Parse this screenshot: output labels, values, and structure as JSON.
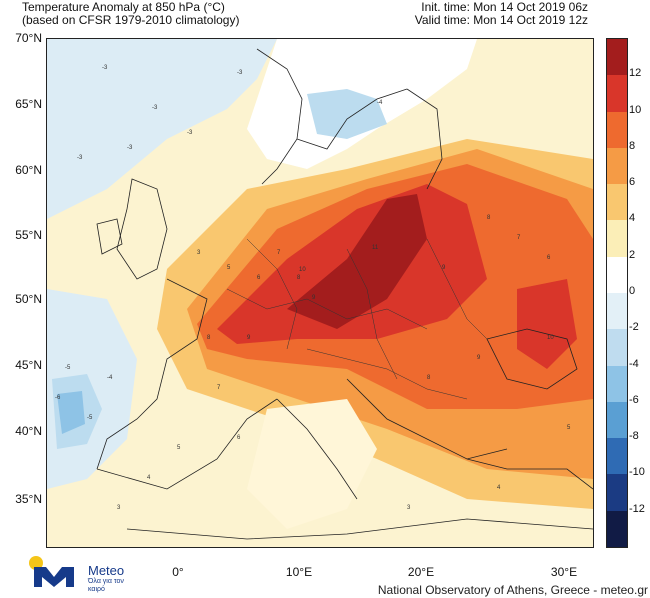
{
  "header": {
    "title_line1": "Temperature Anomaly at 850 hPa (°C)",
    "title_line2": "(based on CFSR 1979-2010 climatology)",
    "init_time": "Init. time: Mon 14 Oct 2019 06z",
    "valid_time": "Valid time: Mon 14 Oct 2019 12z"
  },
  "map": {
    "lat_labels": [
      "70°N",
      "65°N",
      "60°N",
      "55°N",
      "50°N",
      "45°N",
      "40°N",
      "35°N"
    ],
    "lon_labels": [
      "0°",
      "10°E",
      "20°E",
      "30°E"
    ],
    "contour_labels": [
      "-3",
      "-3",
      "-3",
      "-3",
      "-3",
      "-3",
      "-4",
      "-5",
      "-6",
      "-5",
      "-4",
      "3",
      "5",
      "6",
      "7",
      "8",
      "9",
      "10",
      "11",
      "9",
      "8",
      "7",
      "6",
      "5",
      "4",
      "3",
      "8",
      "9",
      "10",
      "9",
      "8",
      "7",
      "6",
      "5",
      "4",
      "3"
    ]
  },
  "colorbar": {
    "labels": [
      "12",
      "10",
      "8",
      "6",
      "4",
      "2",
      "0",
      "-2",
      "-4",
      "-6",
      "-8",
      "-10",
      "-12"
    ],
    "colors": [
      "#a31d1d",
      "#d9362a",
      "#ee6a2f",
      "#f59b45",
      "#f9c76f",
      "#fbeeb7",
      "#ffffff",
      "#e3f0f7",
      "#bfdcef",
      "#8ec3e6",
      "#5a9fd3",
      "#2f6bb4",
      "#1b3b83",
      "#111b45"
    ]
  },
  "footer": {
    "logo_word": "Meteo",
    "logo_tagline": "Όλα για τον καιρό",
    "credit": "National Observatory of Athens, Greece - meteo.gr"
  }
}
